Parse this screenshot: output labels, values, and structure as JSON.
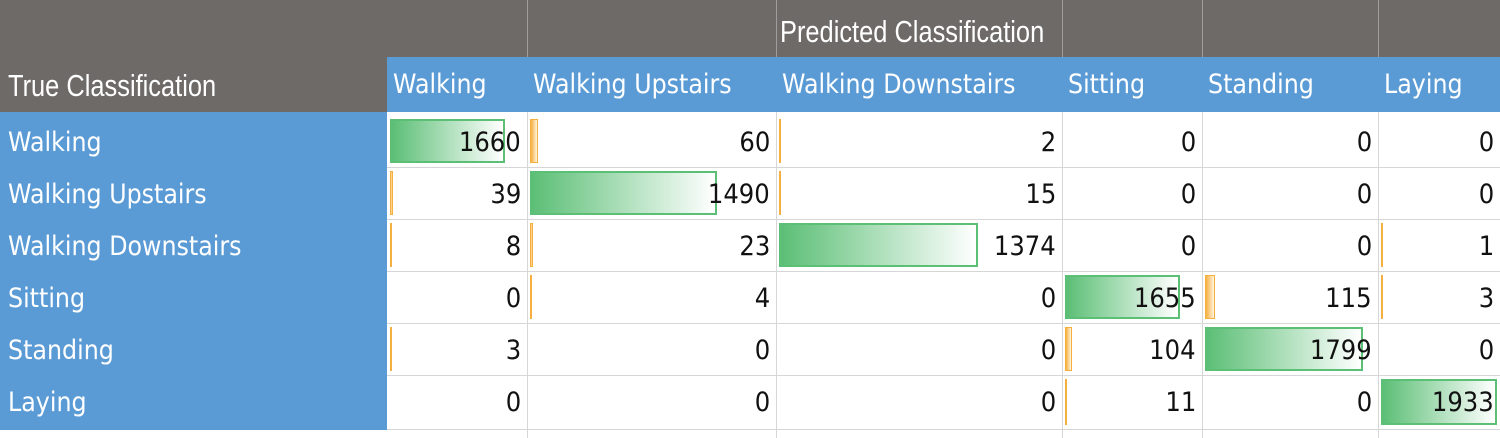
{
  "header": {
    "predicted_label": "Predicted Classification",
    "true_label": "True Classification"
  },
  "colors": {
    "dark_header": "#6e6a68",
    "blue_header": "#5b9bd5",
    "bar_green": "#5cbf76",
    "bar_orange": "#f6b040"
  },
  "chart_data": {
    "type": "table",
    "title": "",
    "col_header": "Predicted Classification",
    "row_header": "True Classification",
    "columns": [
      "Walking",
      "Walking Upstairs",
      "Walking Downstairs",
      "Sitting",
      "Standing",
      "Laying"
    ],
    "rows": [
      {
        "label": "Walking",
        "values": [
          1660,
          60,
          2,
          0,
          0,
          0
        ]
      },
      {
        "label": "Walking Upstairs",
        "values": [
          39,
          1490,
          15,
          0,
          0,
          0
        ]
      },
      {
        "label": "Walking Downstairs",
        "values": [
          8,
          23,
          1374,
          0,
          0,
          1
        ]
      },
      {
        "label": "Sitting",
        "values": [
          0,
          4,
          0,
          1655,
          115,
          3
        ]
      },
      {
        "label": "Standing",
        "values": [
          3,
          0,
          0,
          104,
          1799,
          0
        ]
      },
      {
        "label": "Laying",
        "values": [
          0,
          0,
          0,
          11,
          0,
          1933
        ]
      }
    ],
    "data_bar_max": 1933
  }
}
